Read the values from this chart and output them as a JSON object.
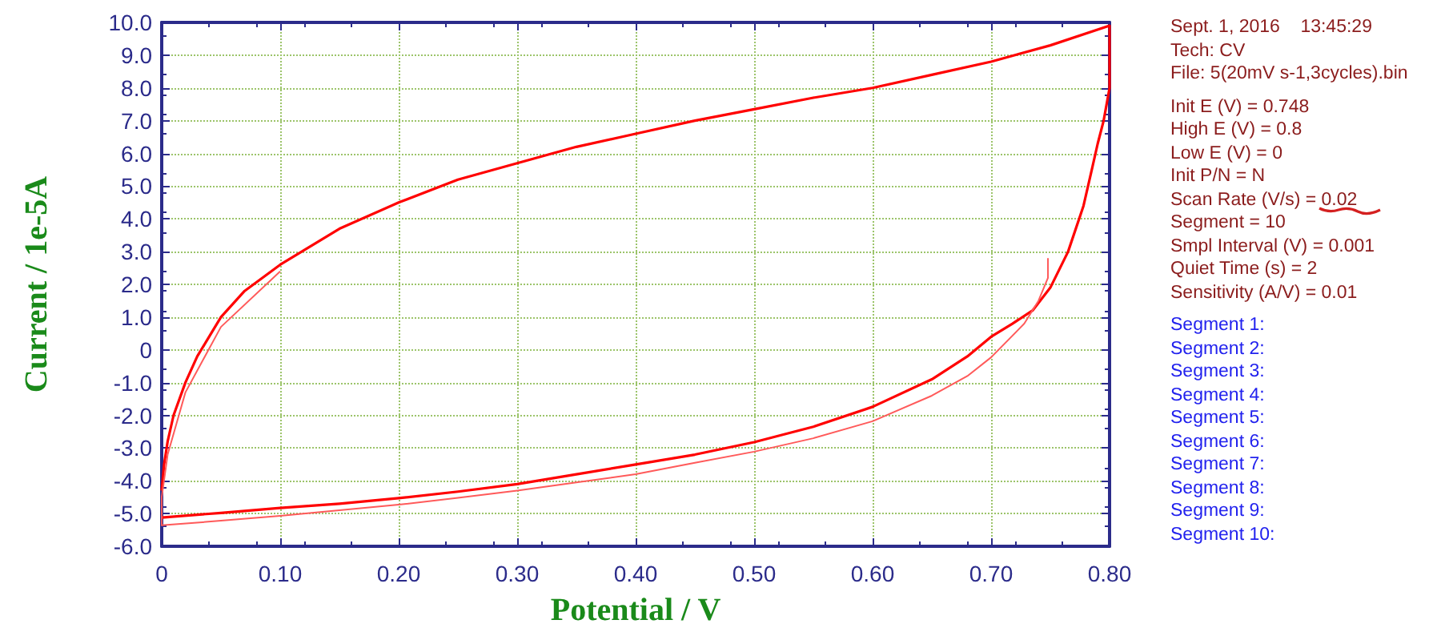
{
  "chart_data": {
    "type": "line",
    "xlabel": "Potential / V",
    "ylabel": "Current / 1e-5A",
    "xlim": [
      0,
      0.8
    ],
    "ylim": [
      -6,
      10
    ],
    "xticks": [
      {
        "value": 0,
        "label": "0"
      },
      {
        "value": 0.1,
        "label": "0.10"
      },
      {
        "value": 0.2,
        "label": "0.20"
      },
      {
        "value": 0.3,
        "label": "0.30"
      },
      {
        "value": 0.4,
        "label": "0.40"
      },
      {
        "value": 0.5,
        "label": "0.50"
      },
      {
        "value": 0.6,
        "label": "0.60"
      },
      {
        "value": 0.7,
        "label": "0.70"
      },
      {
        "value": 0.8,
        "label": "0.80"
      }
    ],
    "yticks": [
      {
        "value": -6,
        "label": "-6.0"
      },
      {
        "value": -5,
        "label": "-5.0"
      },
      {
        "value": -4,
        "label": "-4.0"
      },
      {
        "value": -3,
        "label": "-3.0"
      },
      {
        "value": -2,
        "label": "-2.0"
      },
      {
        "value": -1,
        "label": "-1.0"
      },
      {
        "value": 0,
        "label": "0"
      },
      {
        "value": 1,
        "label": "1.0"
      },
      {
        "value": 2,
        "label": "2.0"
      },
      {
        "value": 3,
        "label": "3.0"
      },
      {
        "value": 4,
        "label": "4.0"
      },
      {
        "value": 5,
        "label": "5.0"
      },
      {
        "value": 6,
        "label": "6.0"
      },
      {
        "value": 7,
        "label": "7.0"
      },
      {
        "value": 8,
        "label": "8.0"
      },
      {
        "value": 9,
        "label": "9.0"
      },
      {
        "value": 10,
        "label": "10.0"
      }
    ],
    "grid": true,
    "marker": "none",
    "line_style": "solid",
    "series": [
      {
        "color": "#ff0000",
        "x": [
          0,
          0.002,
          0.005,
          0.01,
          0.02,
          0.03,
          0.05,
          0.07,
          0.1,
          0.15,
          0.2,
          0.25,
          0.3,
          0.35,
          0.4,
          0.45,
          0.5,
          0.55,
          0.6,
          0.65,
          0.7,
          0.75,
          0.8,
          0.8,
          0.795,
          0.79,
          0.785,
          0.778,
          0.765,
          0.75,
          0.735,
          0.718,
          0.7,
          0.68,
          0.65,
          0.6,
          0.55,
          0.5,
          0.45,
          0.4,
          0.35,
          0.3,
          0.25,
          0.2,
          0.15,
          0.1,
          0.05,
          0
        ],
        "values": [
          -4.3,
          -3.5,
          -2.8,
          -2.0,
          -1.0,
          -0.2,
          1.0,
          1.8,
          2.6,
          3.7,
          4.5,
          5.2,
          5.7,
          6.2,
          6.6,
          7.0,
          7.35,
          7.7,
          8.0,
          8.4,
          8.8,
          9.3,
          9.9,
          8.0,
          7.0,
          6.3,
          5.5,
          4.4,
          3.0,
          1.9,
          1.2,
          0.8,
          0.4,
          -0.2,
          -0.9,
          -1.74,
          -2.35,
          -2.82,
          -3.2,
          -3.5,
          -3.8,
          -4.1,
          -4.33,
          -4.53,
          -4.7,
          -4.83,
          -4.98,
          -5.12
        ]
      },
      {
        "color": "#ff5a5a",
        "x": [
          0.748,
          0.748,
          0.74,
          0.728,
          0.7,
          0.68,
          0.65,
          0.6,
          0.55,
          0.5,
          0.45,
          0.4,
          0.35,
          0.3,
          0.25,
          0.2,
          0.15,
          0.1,
          0.05,
          0,
          0,
          0.005,
          0.02,
          0.05,
          0.1
        ],
        "values": [
          2.8,
          2.2,
          1.5,
          0.8,
          -0.23,
          -0.8,
          -1.4,
          -2.18,
          -2.7,
          -3.11,
          -3.45,
          -3.8,
          -4.05,
          -4.3,
          -4.52,
          -4.73,
          -4.9,
          -5.07,
          -5.22,
          -5.36,
          -4.5,
          -3.2,
          -1.3,
          0.7,
          2.4
        ]
      }
    ],
    "annotations": [
      "Sept. 1, 2016    13:45:29",
      "Tech: CV",
      "File: 5(20mV s-1,3cycles).bin",
      "Init E (V) = 0.748",
      "High E (V) = 0.8",
      "Low E (V) = 0",
      "Init P/N = N",
      "Scan Rate (V/s) = 0.02",
      "Segment = 10",
      "Smpl Interval (V) = 0.001",
      "Quiet Time (s) = 2",
      "Sensitivity (A/V) = 0.01",
      "Segment 1:",
      "Segment 2:",
      "Segment 3:",
      "Segment 4:",
      "Segment 5:",
      "Segment 6:",
      "Segment 7:",
      "Segment 8:",
      "Segment 9:",
      "Segment 10:"
    ]
  }
}
